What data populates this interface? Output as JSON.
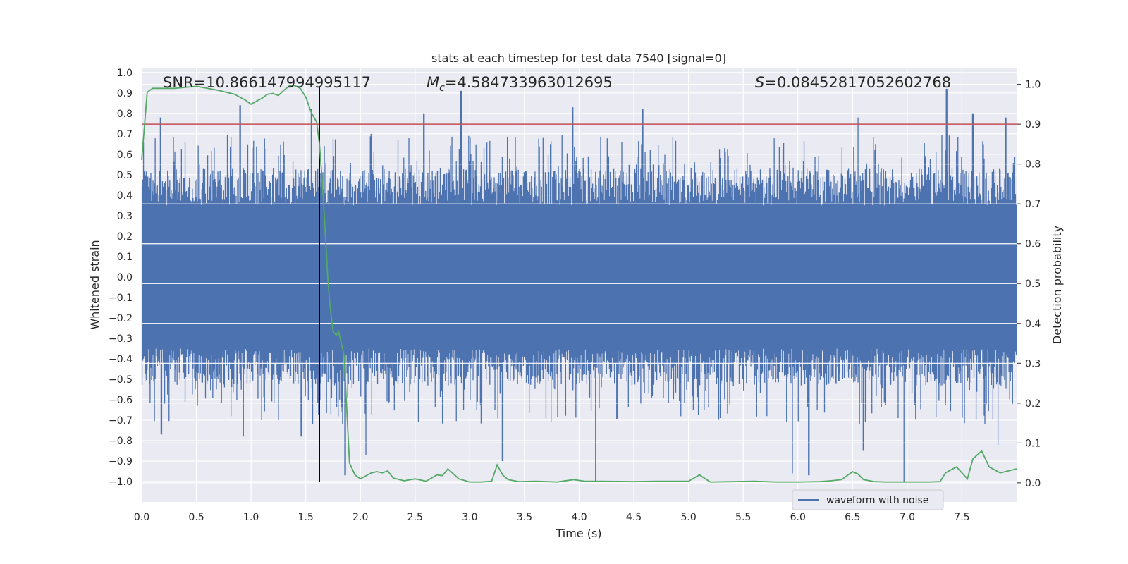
{
  "chart_data": {
    "type": "line",
    "title": "stats at each timestep for test data 7540 [signal=0]",
    "xlabel": "Time (s)",
    "ylabel": "Whitened strain",
    "y2label": "Detection probability",
    "xlim": [
      0,
      8.0
    ],
    "ylim": [
      -1.1,
      1.02
    ],
    "y2lim": [
      -0.048,
      1.04
    ],
    "xticks": [
      "0.0",
      "0.5",
      "1.0",
      "1.5",
      "2.0",
      "2.5",
      "3.0",
      "3.5",
      "4.0",
      "4.5",
      "5.0",
      "5.5",
      "6.0",
      "6.5",
      "7.0",
      "7.5"
    ],
    "yticks": [
      "1.0",
      "0.9",
      "0.8",
      "0.7",
      "0.6",
      "0.5",
      "0.4",
      "0.3",
      "0.2",
      "0.1",
      "0.0",
      "−0.1",
      "−0.2",
      "−0.3",
      "−0.4",
      "−0.5",
      "−0.6",
      "−0.7",
      "−0.8",
      "−0.9",
      "−1.0"
    ],
    "y2ticks": [
      "1.0",
      "0.9",
      "0.8",
      "0.7",
      "0.6",
      "0.5",
      "0.4",
      "0.3",
      "0.2",
      "0.1",
      "0.0"
    ],
    "annotations": {
      "snr": "SNR=10.866147994995117",
      "mc_symbol": "M",
      "mc_sub": "c",
      "mc_value": "=4.584733963012695",
      "s_symbol": "S",
      "s_value": "=0.08452817052602768"
    },
    "legend": {
      "label": "waveform with noise",
      "position": "lower-right"
    },
    "vline_x": 1.625,
    "threshold_prob": 0.9,
    "colors": {
      "waveform": "#4c72b0",
      "probability": "#55a868",
      "threshold": "#c44e52",
      "vline": "#000000",
      "background": "#eaeaf2",
      "grid": "#ffffff"
    },
    "waveform": {
      "name": "waveform with noise",
      "core_amplitude": 0.3,
      "peaks": [
        [
          0.17,
          0.78
        ],
        [
          0.9,
          0.84
        ],
        [
          1.55,
          0.82
        ],
        [
          2.58,
          0.8
        ],
        [
          2.92,
          0.91
        ],
        [
          3.94,
          0.83
        ],
        [
          4.58,
          0.82
        ],
        [
          6.55,
          0.78
        ],
        [
          7.36,
          0.92
        ],
        [
          7.6,
          0.8
        ],
        [
          7.9,
          0.78
        ]
      ],
      "troughs": [
        [
          0.18,
          -0.77
        ],
        [
          0.93,
          -0.78
        ],
        [
          1.46,
          -0.78
        ],
        [
          1.86,
          -0.97
        ],
        [
          2.05,
          -0.87
        ],
        [
          3.3,
          -0.9
        ],
        [
          4.15,
          -1.0
        ],
        [
          5.95,
          -0.96
        ],
        [
          6.1,
          -0.97
        ],
        [
          6.6,
          -0.85
        ],
        [
          6.97,
          -1.0
        ],
        [
          7.83,
          -0.82
        ]
      ]
    },
    "series": [
      {
        "name": "detection probability",
        "x": [
          0.0,
          0.05,
          0.1,
          0.3,
          0.5,
          0.7,
          0.85,
          0.95,
          1.0,
          1.05,
          1.1,
          1.15,
          1.2,
          1.25,
          1.3,
          1.35,
          1.4,
          1.45,
          1.5,
          1.55,
          1.6,
          1.625,
          1.65,
          1.68,
          1.7,
          1.72,
          1.75,
          1.78,
          1.8,
          1.85,
          1.9,
          1.95,
          2.0,
          2.1,
          2.15,
          2.2,
          2.25,
          2.3,
          2.4,
          2.5,
          2.6,
          2.7,
          2.75,
          2.8,
          2.9,
          3.0,
          3.1,
          3.2,
          3.25,
          3.3,
          3.35,
          3.45,
          3.6,
          3.8,
          3.95,
          4.05,
          4.2,
          4.5,
          4.7,
          5.0,
          5.1,
          5.2,
          5.4,
          5.6,
          5.8,
          6.0,
          6.2,
          6.3,
          6.4,
          6.5,
          6.55,
          6.6,
          6.7,
          6.8,
          7.0,
          7.2,
          7.3,
          7.35,
          7.45,
          7.55,
          7.6,
          7.68,
          7.75,
          7.85,
          8.0
        ],
        "values": [
          0.81,
          0.98,
          0.99,
          0.99,
          0.995,
          0.985,
          0.975,
          0.96,
          0.95,
          0.958,
          0.965,
          0.975,
          0.977,
          0.972,
          0.985,
          0.996,
          0.997,
          0.99,
          0.968,
          0.93,
          0.905,
          0.85,
          0.76,
          0.62,
          0.52,
          0.45,
          0.38,
          0.37,
          0.38,
          0.32,
          0.05,
          0.02,
          0.01,
          0.025,
          0.028,
          0.025,
          0.03,
          0.012,
          0.005,
          0.01,
          0.004,
          0.02,
          0.018,
          0.035,
          0.01,
          0.002,
          0.002,
          0.004,
          0.045,
          0.02,
          0.008,
          0.003,
          0.004,
          0.002,
          0.008,
          0.004,
          0.004,
          0.003,
          0.004,
          0.004,
          0.02,
          0.002,
          0.003,
          0.004,
          0.002,
          0.002,
          0.003,
          0.005,
          0.008,
          0.028,
          0.022,
          0.008,
          0.003,
          0.002,
          0.002,
          0.002,
          0.003,
          0.025,
          0.04,
          0.01,
          0.06,
          0.08,
          0.04,
          0.025,
          0.035
        ]
      }
    ]
  }
}
